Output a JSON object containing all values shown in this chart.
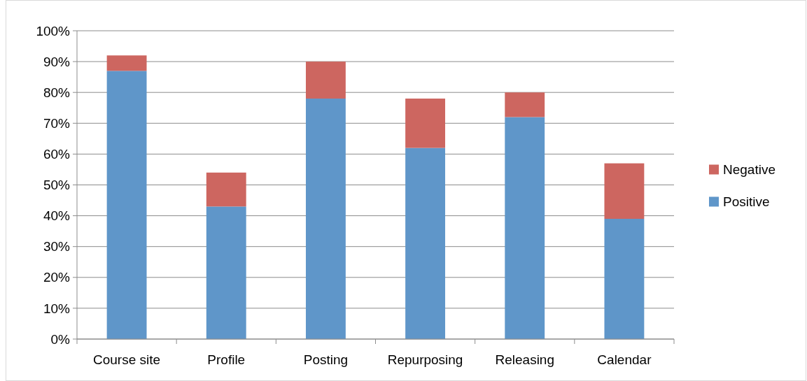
{
  "chart_data": {
    "type": "bar",
    "stacked": true,
    "categories": [
      "Course site",
      "Profile",
      "Posting",
      "Repurposing",
      "Releasing",
      "Calendar"
    ],
    "series": [
      {
        "name": "Positive",
        "color": "#5f96c9",
        "values": [
          87,
          43,
          78,
          62,
          72,
          39
        ]
      },
      {
        "name": "Negative",
        "color": "#cd6660",
        "values": [
          5,
          11,
          12,
          16,
          8,
          18
        ]
      }
    ],
    "ylim": [
      0,
      100
    ],
    "yticks": [
      {
        "value": 0,
        "label": "0%"
      },
      {
        "value": 10,
        "label": "10%"
      },
      {
        "value": 20,
        "label": "20%"
      },
      {
        "value": 30,
        "label": "30%"
      },
      {
        "value": 40,
        "label": "40%"
      },
      {
        "value": 50,
        "label": "50%"
      },
      {
        "value": 60,
        "label": "60%"
      },
      {
        "value": 70,
        "label": "70%"
      },
      {
        "value": 80,
        "label": "80%"
      },
      {
        "value": 90,
        "label": "90%"
      },
      {
        "value": 100,
        "label": "100%"
      }
    ],
    "grid": "y",
    "legend": "right"
  }
}
